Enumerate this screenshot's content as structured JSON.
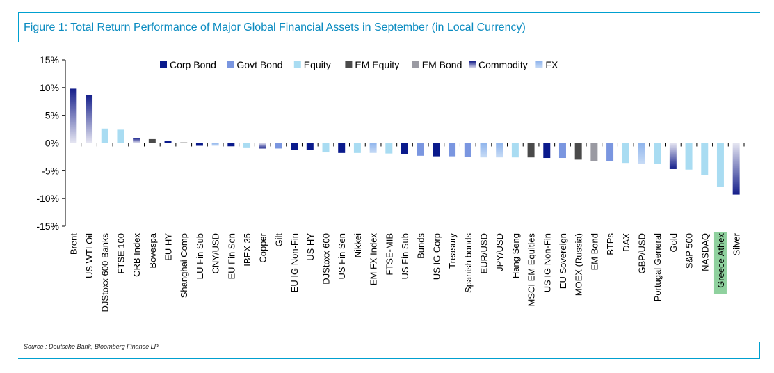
{
  "title": "Figure 1: Total Return Performance of Major Global Financial Assets in September (in Local Currency)",
  "source": "Source : Deutsche Bank, Bloomberg Finance LP",
  "colors": {
    "corp_bond": "#0a1a8c",
    "govt_bond": "#7a96e0",
    "equity": "#a9dcf2",
    "em_equity": "#4a4a4a",
    "em_bond": "#9a9aa2",
    "commodity_top": "#141e8a",
    "commodity_bottom": "#e6e6f2",
    "fx_top": "#8fb4ec",
    "fx_bottom": "#c8dcf6",
    "highlight": "#8fd19e"
  },
  "chart_data": {
    "type": "bar",
    "ylim": [
      -15,
      15
    ],
    "yticks": [
      15,
      10,
      5,
      0,
      -5,
      -10,
      -15
    ],
    "ytick_labels": [
      "15%",
      "10%",
      "5%",
      "0%",
      "-5%",
      "-10%",
      "-15%"
    ],
    "legend": [
      {
        "key": "corp_bond",
        "label": "Corp Bond"
      },
      {
        "key": "govt_bond",
        "label": "Govt Bond"
      },
      {
        "key": "equity",
        "label": "Equity"
      },
      {
        "key": "em_equity",
        "label": "EM Equity"
      },
      {
        "key": "em_bond",
        "label": "EM Bond"
      },
      {
        "key": "commodity",
        "label": "Commodity"
      },
      {
        "key": "fx",
        "label": "FX"
      }
    ],
    "highlighted_category": "Greece Athex",
    "bars": [
      {
        "label": "Brent",
        "value": 9.8,
        "cls": "commodity"
      },
      {
        "label": "US WTI Oil",
        "value": 8.7,
        "cls": "commodity"
      },
      {
        "label": "DJStoxx 600 Banks",
        "value": 2.6,
        "cls": "equity"
      },
      {
        "label": "FTSE 100",
        "value": 2.4,
        "cls": "equity"
      },
      {
        "label": "CRB Index",
        "value": 0.9,
        "cls": "commodity"
      },
      {
        "label": "Bovespa",
        "value": 0.7,
        "cls": "em_equity"
      },
      {
        "label": "EU HY",
        "value": 0.4,
        "cls": "corp_bond"
      },
      {
        "label": "Shanghai Comp",
        "value": 0.1,
        "cls": "em_equity"
      },
      {
        "label": "EU Fin Sub",
        "value": -0.5,
        "cls": "corp_bond"
      },
      {
        "label": "CNY/USD",
        "value": -0.5,
        "cls": "fx"
      },
      {
        "label": "EU Fin Sen",
        "value": -0.6,
        "cls": "corp_bond"
      },
      {
        "label": "IBEX 35",
        "value": -0.8,
        "cls": "equity"
      },
      {
        "label": "Copper",
        "value": -1.0,
        "cls": "commodity"
      },
      {
        "label": "Gilt",
        "value": -1.0,
        "cls": "govt_bond"
      },
      {
        "label": "EU IG Non-Fin",
        "value": -1.2,
        "cls": "corp_bond"
      },
      {
        "label": "US HY",
        "value": -1.3,
        "cls": "corp_bond"
      },
      {
        "label": "DJStoxx 600",
        "value": -1.7,
        "cls": "equity"
      },
      {
        "label": "US Fin Sen",
        "value": -1.8,
        "cls": "corp_bond"
      },
      {
        "label": "Nikkei",
        "value": -1.8,
        "cls": "equity"
      },
      {
        "label": "EM FX Index",
        "value": -1.8,
        "cls": "fx"
      },
      {
        "label": "FTSE-MIB",
        "value": -1.9,
        "cls": "equity"
      },
      {
        "label": "US Fin Sub",
        "value": -2.0,
        "cls": "corp_bond"
      },
      {
        "label": "Bunds",
        "value": -2.3,
        "cls": "govt_bond"
      },
      {
        "label": "US IG Corp",
        "value": -2.4,
        "cls": "corp_bond"
      },
      {
        "label": "Treasury",
        "value": -2.4,
        "cls": "govt_bond"
      },
      {
        "label": "Spanish bonds",
        "value": -2.5,
        "cls": "govt_bond"
      },
      {
        "label": "EUR/USD",
        "value": -2.6,
        "cls": "fx"
      },
      {
        "label": "JPY/USD",
        "value": -2.6,
        "cls": "fx"
      },
      {
        "label": "Hang Seng",
        "value": -2.6,
        "cls": "equity"
      },
      {
        "label": "MSCI EM Equities",
        "value": -2.6,
        "cls": "em_equity"
      },
      {
        "label": "US IG Non-Fin",
        "value": -2.7,
        "cls": "corp_bond"
      },
      {
        "label": "EU Sovereign",
        "value": -2.7,
        "cls": "govt_bond"
      },
      {
        "label": "MOEX (Russia)",
        "value": -3.0,
        "cls": "em_equity"
      },
      {
        "label": "EM Bond",
        "value": -3.2,
        "cls": "em_bond"
      },
      {
        "label": "BTPs",
        "value": -3.2,
        "cls": "govt_bond"
      },
      {
        "label": "DAX",
        "value": -3.6,
        "cls": "equity"
      },
      {
        "label": "GBP/USD",
        "value": -3.8,
        "cls": "fx"
      },
      {
        "label": "Portugal General",
        "value": -3.8,
        "cls": "equity"
      },
      {
        "label": "Gold",
        "value": -4.7,
        "cls": "commodity"
      },
      {
        "label": "S&P 500",
        "value": -4.8,
        "cls": "equity"
      },
      {
        "label": "NASDAQ",
        "value": -5.8,
        "cls": "equity"
      },
      {
        "label": "Greece Athex",
        "value": -7.9,
        "cls": "equity"
      },
      {
        "label": "Silver",
        "value": -9.3,
        "cls": "commodity"
      }
    ]
  }
}
